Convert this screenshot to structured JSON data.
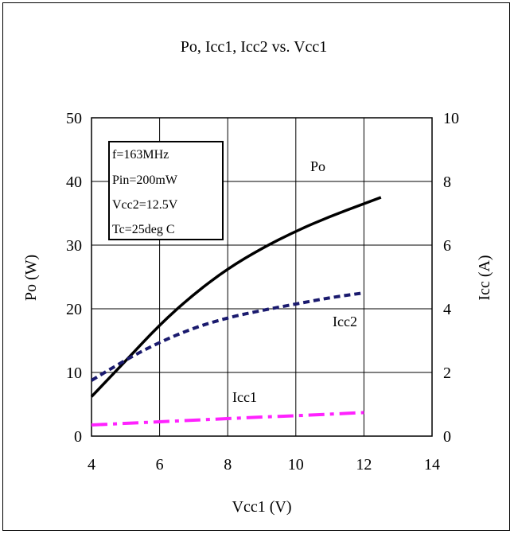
{
  "chart_data": {
    "type": "line",
    "title": "Po, Icc1, Icc2 vs. Vcc1",
    "xlabel": "Vcc1 (V)",
    "ylabel_left": "Po (W)",
    "ylabel_right": "Icc (A)",
    "xlim": [
      4,
      14
    ],
    "ylim_left": [
      0,
      50
    ],
    "ylim_right": [
      0,
      10
    ],
    "x_ticks": [
      "4",
      "6",
      "8",
      "10",
      "12",
      "14"
    ],
    "y_ticks_left": [
      "0",
      "10",
      "20",
      "30",
      "40",
      "50"
    ],
    "y_ticks_right": [
      "0",
      "2",
      "4",
      "6",
      "8",
      "10"
    ],
    "grid": true,
    "conditions": [
      "f=163MHz",
      "Pin=200mW",
      "Vcc2=12.5V",
      "Tc=25deg C"
    ],
    "series": [
      {
        "name": "Po",
        "axis": "left",
        "color": "#000000",
        "style": "solid",
        "x": [
          4,
          5,
          6,
          7,
          8,
          9,
          10,
          11,
          12,
          12.5
        ],
        "y": [
          6.2,
          11.8,
          17.5,
          22.3,
          26.3,
          29.5,
          32.2,
          34.5,
          36.5,
          37.5
        ]
      },
      {
        "name": "Icc2",
        "axis": "right",
        "color": "#1a1a6e",
        "style": "dash",
        "x": [
          4,
          5,
          6,
          7,
          8,
          9,
          10,
          11,
          12
        ],
        "y": [
          1.75,
          2.4,
          2.95,
          3.4,
          3.72,
          3.95,
          4.15,
          4.35,
          4.5
        ]
      },
      {
        "name": "Icc1",
        "axis": "right",
        "color": "#ff22ff",
        "style": "dashdot",
        "x": [
          4,
          5,
          6,
          7,
          8,
          9,
          10,
          11,
          12
        ],
        "y": [
          0.35,
          0.4,
          0.45,
          0.5,
          0.55,
          0.6,
          0.64,
          0.69,
          0.74
        ]
      }
    ],
    "series_labels": [
      {
        "name": "Po",
        "text": "Po"
      },
      {
        "name": "Icc2",
        "text": "Icc2"
      },
      {
        "name": "Icc1",
        "text": "Icc1"
      }
    ]
  }
}
